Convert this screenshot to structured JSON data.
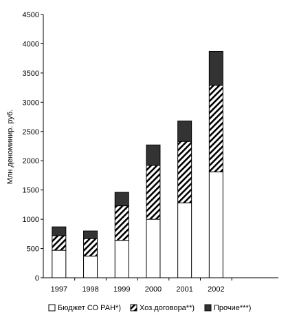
{
  "chart_data": {
    "type": "bar",
    "stacked": true,
    "categories": [
      "1997",
      "1998",
      "1999",
      "2000",
      "2001",
      "2002"
    ],
    "series": [
      {
        "name": "Бюджет СО РАН*)",
        "values": [
          470,
          370,
          640,
          1000,
          1280,
          1810
        ],
        "pattern": "solid-white"
      },
      {
        "name": "Хоз.договора**)",
        "values": [
          250,
          300,
          590,
          920,
          1050,
          1480
        ],
        "pattern": "diagonal-hatch"
      },
      {
        "name": "Прочие***)",
        "values": [
          150,
          130,
          230,
          350,
          350,
          580
        ],
        "pattern": "solid-dark"
      }
    ],
    "ylabel": "Млн деноминир. руб.",
    "xlabel": "",
    "ylim": [
      0,
      4500
    ],
    "yticks": [
      0,
      500,
      1000,
      1500,
      2000,
      2500,
      3000,
      3500,
      4000,
      4500
    ],
    "grid": false,
    "legend_position": "bottom",
    "colors": {
      "dark": "#333333",
      "outline": "#000000",
      "background": "#ffffff"
    }
  }
}
